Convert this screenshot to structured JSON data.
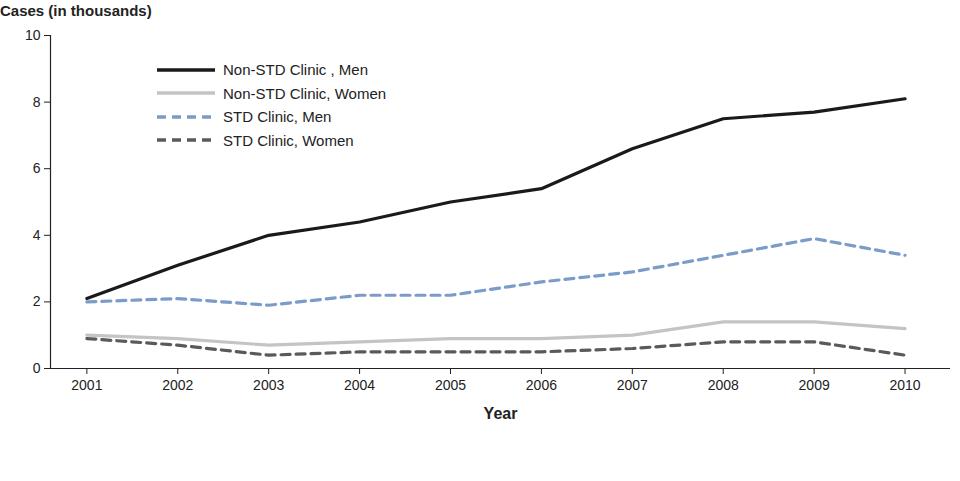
{
  "chart_data": {
    "type": "line",
    "ylabel": "Cases (in thousands)",
    "xlabel": "Year",
    "x": [
      2001,
      2002,
      2003,
      2004,
      2005,
      2006,
      2007,
      2008,
      2009,
      2010
    ],
    "xlim": [
      2000.6,
      2010.5
    ],
    "xticks": [
      2001,
      2002,
      2003,
      2004,
      2005,
      2006,
      2007,
      2008,
      2009,
      2010
    ],
    "ylim": [
      0,
      10
    ],
    "yticks": [
      0,
      2,
      4,
      6,
      8,
      10
    ],
    "grid": false,
    "legend": "upper-left",
    "series": [
      {
        "name": "Non-STD Clinic , Men",
        "color": "#1a1a1a",
        "line_style": "solid",
        "values": [
          2.1,
          3.1,
          4.0,
          4.4,
          5.0,
          5.4,
          6.6,
          7.5,
          7.7,
          8.1
        ]
      },
      {
        "name": "Non-STD Clinic, Women",
        "color": "#c4c4c4",
        "line_style": "solid",
        "values": [
          1.0,
          0.9,
          0.7,
          0.8,
          0.9,
          0.9,
          1.0,
          1.4,
          1.4,
          1.2
        ]
      },
      {
        "name": "STD Clinic, Men",
        "color": "#7b9cc9",
        "line_style": "dashed",
        "values": [
          2.0,
          2.1,
          1.9,
          2.2,
          2.2,
          2.6,
          2.9,
          3.4,
          3.9,
          3.4
        ]
      },
      {
        "name": "STD Clinic, Women",
        "color": "#5a5a5a",
        "line_style": "dashed",
        "values": [
          0.9,
          0.7,
          0.4,
          0.5,
          0.5,
          0.5,
          0.6,
          0.8,
          0.8,
          0.4
        ]
      }
    ]
  }
}
